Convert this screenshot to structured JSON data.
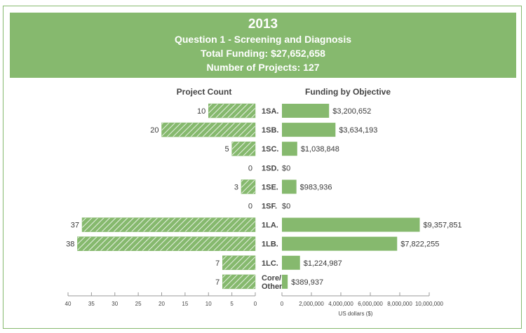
{
  "header": {
    "year": "2013",
    "subtitle": "Question 1 - Screening and Diagnosis",
    "total_funding": "Total Funding: $27,652,658",
    "num_projects": "Number of Projects: 127"
  },
  "colors": {
    "accent": "#86b96e",
    "text": "#444444",
    "axis": "#999999"
  },
  "chart_data": {
    "type": "bar",
    "title": "2013 Question 1 - Screening and Diagnosis",
    "orientation": "horizontal",
    "categories": [
      "1SA.",
      "1SB.",
      "1SC.",
      "1SD.",
      "1SE.",
      "1SF.",
      "1LA.",
      "1LB.",
      "1LC.",
      "Core/Other"
    ],
    "left_panel": {
      "title": "Project Count",
      "values": [
        10,
        20,
        5,
        0,
        3,
        0,
        37,
        38,
        7,
        7
      ],
      "labels": [
        "10",
        "20",
        "5",
        "0",
        "3",
        "0",
        "37",
        "38",
        "7",
        "7"
      ],
      "xlim": [
        0,
        40
      ],
      "ticks": [
        "40",
        "35",
        "30",
        "25",
        "20",
        "15",
        "10",
        "5",
        "0"
      ],
      "tick_values": [
        40,
        35,
        30,
        25,
        20,
        15,
        10,
        5,
        0
      ],
      "pattern": "hatched",
      "direction": "leftward"
    },
    "right_panel": {
      "title": "Funding by Objective",
      "values": [
        3200652,
        3634193,
        1038848,
        0,
        983936,
        0,
        9357851,
        7822255,
        1224987,
        389937
      ],
      "labels": [
        "$3,200,652",
        "$3,634,193",
        "$1,038,848",
        "$0",
        "$983,936",
        "$0",
        "$9,357,851",
        "$7,822,255",
        "$1,224,987",
        "$389,937"
      ],
      "xlim": [
        0,
        10000000
      ],
      "ticks": [
        "0",
        "2,000,000",
        "4,000,000",
        "6,000,000",
        "8,000,000",
        "10,000,000"
      ],
      "tick_values": [
        0,
        2000000,
        4000000,
        6000000,
        8000000,
        10000000
      ],
      "xlabel": "US dollars ($)",
      "pattern": "solid"
    },
    "grid": false,
    "legend": "none"
  }
}
